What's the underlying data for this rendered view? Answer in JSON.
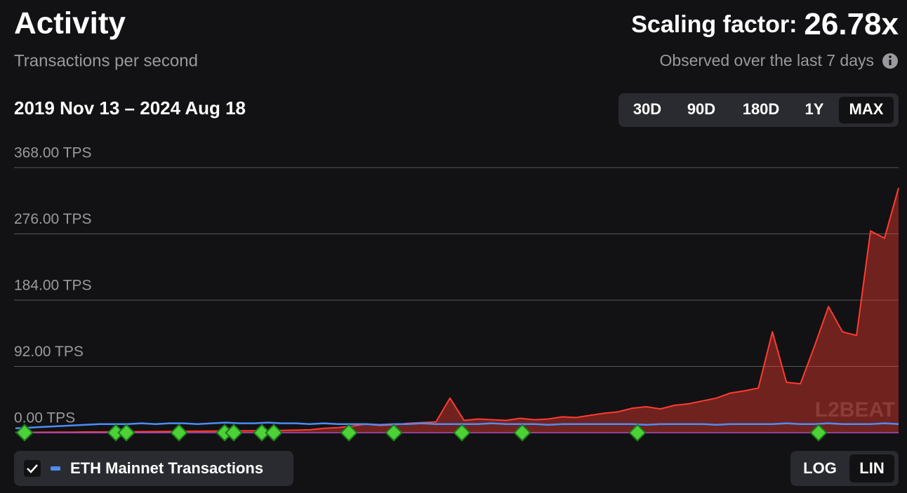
{
  "header": {
    "scaling_label": "Scaling factor:",
    "scaling_value": "26.78x",
    "observed": "Observed over the last 7 days",
    "date_range": "2019 Nov 13 – 2024 Aug 18",
    "range_options": [
      "30D",
      "90D",
      "180D",
      "1Y",
      "MAX"
    ],
    "selected_range": "MAX",
    "scale_options": [
      "LOG",
      "LIN"
    ],
    "selected_scale": "LIN"
  },
  "chart_data": {
    "type": "area",
    "title": "Activity",
    "subtitle": "Transactions per second",
    "watermark": "L2BEAT",
    "ylim": [
      0,
      368
    ],
    "yticks": [
      {
        "value": 0,
        "label": "0.00 TPS"
      },
      {
        "value": 92,
        "label": "92.00 TPS"
      },
      {
        "value": 184,
        "label": "184.00 TPS"
      },
      {
        "value": 276,
        "label": "276.00 TPS"
      },
      {
        "value": 368,
        "label": "368.00 TPS"
      }
    ],
    "grid": true,
    "series": [
      {
        "color": "#ff3b30",
        "values": [
          0.5,
          0.5,
          0.6,
          0.7,
          0.8,
          1,
          1,
          1.2,
          1.3,
          1.5,
          1.6,
          1.8,
          2,
          2,
          2.2,
          2.4,
          2.5,
          2.7,
          3,
          3.2,
          3.5,
          4,
          6,
          7,
          9,
          12,
          10,
          11,
          13,
          14,
          15,
          48,
          17,
          19,
          18,
          17,
          20,
          18,
          19,
          22,
          21,
          24,
          27,
          29,
          34,
          36,
          33,
          38,
          40,
          44,
          48,
          55,
          58,
          62,
          140,
          70,
          68,
          120,
          175,
          140,
          135,
          280,
          270,
          340
        ]
      },
      {
        "name": "ETH Mainnet Transactions",
        "color": "#4c8df6",
        "values": [
          6,
          7,
          8,
          9,
          10,
          11,
          12,
          12,
          12,
          13,
          12,
          13,
          13,
          12,
          13,
          14,
          13,
          13,
          14,
          13,
          13,
          12,
          13,
          12,
          12,
          12,
          11,
          12,
          12,
          13,
          12,
          12,
          12,
          12,
          13,
          12,
          12,
          12,
          11,
          12,
          12,
          12,
          12,
          12,
          12,
          11,
          12,
          12,
          12,
          12,
          11,
          12,
          12,
          12,
          12,
          13,
          12,
          12,
          13,
          12,
          12,
          12,
          13,
          12
        ]
      }
    ]
  }
}
